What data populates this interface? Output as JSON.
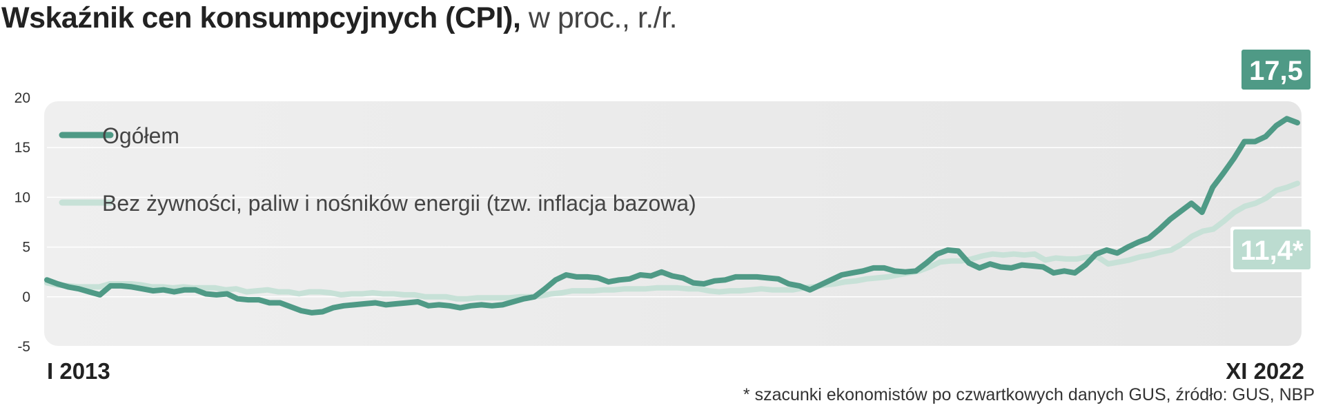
{
  "title": {
    "main": "Wskaźnik cen konsumpcyjnych (CPI),",
    "sub": "w proc., r./r."
  },
  "source": "* szacunki ekonomistów po czwartkowych danych GUS, źródło: GUS, NBP",
  "colors": {
    "headline": "#4f9a86",
    "core": "#c7e1d7",
    "core_badge": "#bcdcd0",
    "panel": "#ececec"
  },
  "chart_data": {
    "type": "line",
    "title": "Wskaźnik cen konsumpcyjnych (CPI), w proc., r./r.",
    "xlabel": "",
    "ylabel": "",
    "x_range": [
      "I 2013",
      "XI 2022"
    ],
    "x_tick_labels": [
      "I 2013",
      "XI 2022"
    ],
    "ylim": [
      -5,
      20
    ],
    "y_ticks": [
      "20",
      "15",
      "10",
      "5",
      "0",
      "-5"
    ],
    "grid": true,
    "legend_position": "top-left",
    "annotations": [
      {
        "series": "Ogółem",
        "text": "17,5"
      },
      {
        "series": "Bez żywności, paliw i nośników energii (tzw. inflacja bazowa)",
        "text": "11,4*"
      }
    ],
    "series": [
      {
        "name": "Ogółem",
        "values": [
          1.7,
          1.3,
          1.0,
          0.8,
          0.5,
          0.2,
          1.1,
          1.1,
          1.0,
          0.8,
          0.6,
          0.7,
          0.5,
          0.7,
          0.7,
          0.3,
          0.2,
          0.3,
          -0.2,
          -0.3,
          -0.3,
          -0.6,
          -0.6,
          -1.0,
          -1.4,
          -1.6,
          -1.5,
          -1.1,
          -0.9,
          -0.8,
          -0.7,
          -0.6,
          -0.8,
          -0.7,
          -0.6,
          -0.5,
          -0.9,
          -0.8,
          -0.9,
          -1.1,
          -0.9,
          -0.8,
          -0.9,
          -0.8,
          -0.5,
          -0.2,
          0.0,
          0.8,
          1.7,
          2.2,
          2.0,
          2.0,
          1.9,
          1.5,
          1.7,
          1.8,
          2.2,
          2.1,
          2.5,
          2.1,
          1.9,
          1.4,
          1.3,
          1.6,
          1.7,
          2.0,
          2.0,
          2.0,
          1.9,
          1.8,
          1.3,
          1.1,
          0.7,
          1.2,
          1.7,
          2.2,
          2.4,
          2.6,
          2.9,
          2.9,
          2.6,
          2.5,
          2.6,
          3.4,
          4.3,
          4.7,
          4.6,
          3.4,
          2.9,
          3.3,
          3.0,
          2.9,
          3.2,
          3.1,
          3.0,
          2.4,
          2.6,
          2.4,
          3.2,
          4.3,
          4.7,
          4.4,
          5.0,
          5.5,
          5.9,
          6.8,
          7.8,
          8.6,
          9.4,
          8.5,
          11.0,
          12.4,
          13.9,
          15.6,
          15.6,
          16.1,
          17.2,
          17.9,
          17.5
        ]
      },
      {
        "name": "Bez żywności, paliw i nośników energii (tzw. inflacja bazowa)",
        "values": [
          1.4,
          1.2,
          1.1,
          1.0,
          1.0,
          1.0,
          1.3,
          1.3,
          1.3,
          1.2,
          1.0,
          1.0,
          0.9,
          1.0,
          0.9,
          0.9,
          0.9,
          0.7,
          0.8,
          0.5,
          0.6,
          0.7,
          0.5,
          0.5,
          0.3,
          0.5,
          0.5,
          0.4,
          0.2,
          0.3,
          0.3,
          0.4,
          0.3,
          0.3,
          0.2,
          0.2,
          0.0,
          0.0,
          0.0,
          -0.2,
          -0.2,
          -0.1,
          -0.1,
          -0.1,
          -0.1,
          0.0,
          0.0,
          0.1,
          0.3,
          0.4,
          0.6,
          0.6,
          0.6,
          0.7,
          0.7,
          0.8,
          0.8,
          0.8,
          0.9,
          0.9,
          0.9,
          0.8,
          0.8,
          0.6,
          0.5,
          0.6,
          0.6,
          0.7,
          0.8,
          0.7,
          0.7,
          0.7,
          0.9,
          1.0,
          1.2,
          1.3,
          1.5,
          1.6,
          1.8,
          1.9,
          2.0,
          2.2,
          2.4,
          2.6,
          3.0,
          3.5,
          3.6,
          3.6,
          3.8,
          4.1,
          4.3,
          4.2,
          4.3,
          4.2,
          4.3,
          3.7,
          3.9,
          3.8,
          3.8,
          4.0,
          4.0,
          3.3,
          3.5,
          3.7,
          4.0,
          4.2,
          4.5,
          4.7,
          5.3,
          6.1,
          6.6,
          6.8,
          7.6,
          8.5,
          9.1,
          9.4,
          9.9,
          10.7,
          11.0,
          11.4
        ]
      }
    ]
  }
}
